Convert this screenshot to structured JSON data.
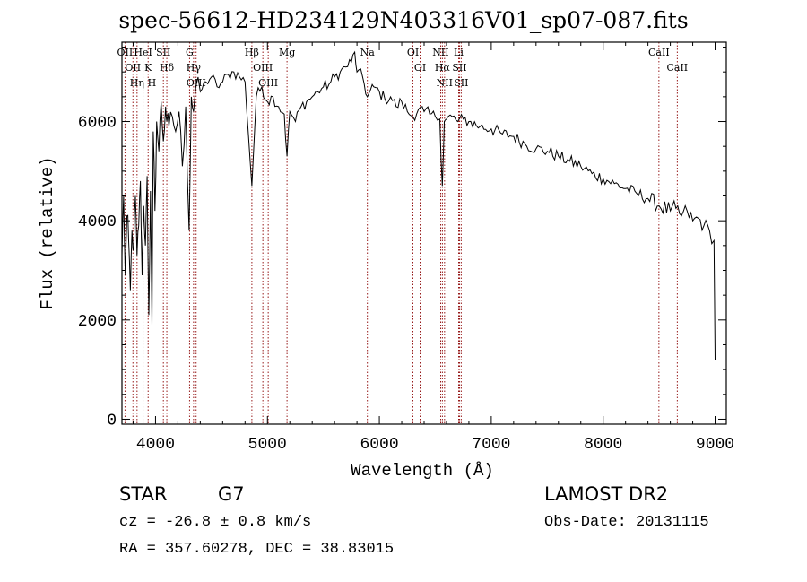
{
  "chart_data": {
    "type": "line",
    "title": "spec-56612-HD234129N403316V01_sp07-087.fits",
    "xlabel": "Wavelength (Å)",
    "ylabel": "Flux (relative)",
    "xlim": [
      3700,
      9100
    ],
    "ylim": [
      -100,
      7600
    ],
    "x_ticks": [
      4000,
      5000,
      6000,
      7000,
      8000,
      9000
    ],
    "y_ticks": [
      0,
      2000,
      4000,
      6000
    ],
    "x_tick_labels": [
      "4000",
      "5000",
      "6000",
      "7000",
      "8000",
      "9000"
    ],
    "y_tick_labels": [
      "0",
      "2000",
      "4000",
      "6000"
    ],
    "grid": false,
    "series": [
      {
        "x": [
          3700,
          3715,
          3730,
          3745,
          3760,
          3775,
          3790,
          3805,
          3820,
          3835,
          3850,
          3865,
          3880,
          3895,
          3910,
          3925,
          3940,
          3955,
          3968,
          3980,
          3995,
          4010,
          4030,
          4050,
          4070,
          4090,
          4101,
          4120,
          4150,
          4180,
          4210,
          4240,
          4270,
          4300,
          4320,
          4340,
          4360,
          4400,
          4450,
          4500,
          4550,
          4600,
          4650,
          4700,
          4750,
          4800,
          4861,
          4900,
          4950,
          5000,
          5050,
          5100,
          5150,
          5175,
          5200,
          5250,
          5300,
          5350,
          5400,
          5450,
          5500,
          5550,
          5600,
          5650,
          5700,
          5750,
          5780,
          5800,
          5850,
          5893,
          5950,
          6000,
          6050,
          6100,
          6150,
          6200,
          6250,
          6300,
          6350,
          6400,
          6450,
          6500,
          6540,
          6563,
          6580,
          6600,
          6650,
          6700,
          6750,
          6800,
          6900,
          7000,
          7100,
          7200,
          7300,
          7400,
          7500,
          7600,
          7700,
          7800,
          7900,
          8000,
          8100,
          8200,
          8300,
          8400,
          8500,
          8600,
          8650,
          8700,
          8750,
          8800,
          8850,
          8900,
          8950,
          8990,
          9000
        ],
        "y": [
          3300,
          4500,
          2900,
          4100,
          3600,
          2600,
          3800,
          3400,
          4500,
          3300,
          3900,
          4800,
          2900,
          4300,
          3500,
          4900,
          2100,
          4600,
          1900,
          5800,
          4200,
          6000,
          5400,
          6400,
          5600,
          6300,
          6000,
          5900,
          6100,
          5800,
          6200,
          5100,
          6300,
          3800,
          6500,
          6200,
          6700,
          6600,
          6800,
          6900,
          6700,
          6800,
          6950,
          7000,
          6900,
          6800,
          4700,
          6500,
          6700,
          6400,
          6500,
          6300,
          6150,
          5300,
          6200,
          6000,
          6300,
          6400,
          6500,
          6600,
          6700,
          6750,
          6900,
          7000,
          7100,
          7200,
          7400,
          7000,
          6900,
          6500,
          6700,
          6600,
          6450,
          6500,
          6300,
          6400,
          6200,
          6100,
          6250,
          6200,
          6150,
          6100,
          6050,
          4700,
          6000,
          6050,
          6100,
          6000,
          6050,
          6000,
          5900,
          5850,
          5750,
          5700,
          5550,
          5450,
          5400,
          5300,
          5200,
          5100,
          4950,
          4850,
          4750,
          4650,
          4550,
          4450,
          4300,
          4200,
          4250,
          4100,
          4200,
          4000,
          4050,
          3900,
          3800,
          3600,
          1200
        ]
      }
    ],
    "line_markers": [
      {
        "x": 3727,
        "label": "OII"
      },
      {
        "x": 3798,
        "label": "OII"
      },
      {
        "x": 3835,
        "label": "Hη"
      },
      {
        "x": 3889,
        "label": "HeI"
      },
      {
        "x": 3934,
        "label": "K"
      },
      {
        "x": 3968,
        "label": "H"
      },
      {
        "x": 4070,
        "label": "SII"
      },
      {
        "x": 4101,
        "label": "Hδ"
      },
      {
        "x": 4304,
        "label": "G"
      },
      {
        "x": 4340,
        "label": "Hγ"
      },
      {
        "x": 4363,
        "label": "OIII"
      },
      {
        "x": 4861,
        "label": "Hβ"
      },
      {
        "x": 4959,
        "label": "OIII"
      },
      {
        "x": 5007,
        "label": "OIII"
      },
      {
        "x": 5175,
        "label": "Mg"
      },
      {
        "x": 5893,
        "label": "Na"
      },
      {
        "x": 6300,
        "label": "OI"
      },
      {
        "x": 6364,
        "label": "OI"
      },
      {
        "x": 6548,
        "label": "NII"
      },
      {
        "x": 6563,
        "label": "Hα"
      },
      {
        "x": 6583,
        "label": "NII"
      },
      {
        "x": 6708,
        "label": "Li"
      },
      {
        "x": 6716,
        "label": "SII"
      },
      {
        "x": 6731,
        "label": "SII"
      },
      {
        "x": 8498,
        "label": "CaII"
      },
      {
        "x": 8662,
        "label": "CaII"
      }
    ]
  },
  "info": {
    "object_class": "STAR",
    "subclass": "G7",
    "survey": "LAMOST DR2",
    "redshift_line": "cz = -26.8 ± 0.8 km/s",
    "obs_date_line": "Obs-Date: 20131115",
    "coords_line": "RA = 357.60278, DEC =  38.83015"
  },
  "colors": {
    "line": "#000000",
    "marker": "#8b0000",
    "axis": "#000000",
    "background": "#ffffff"
  }
}
